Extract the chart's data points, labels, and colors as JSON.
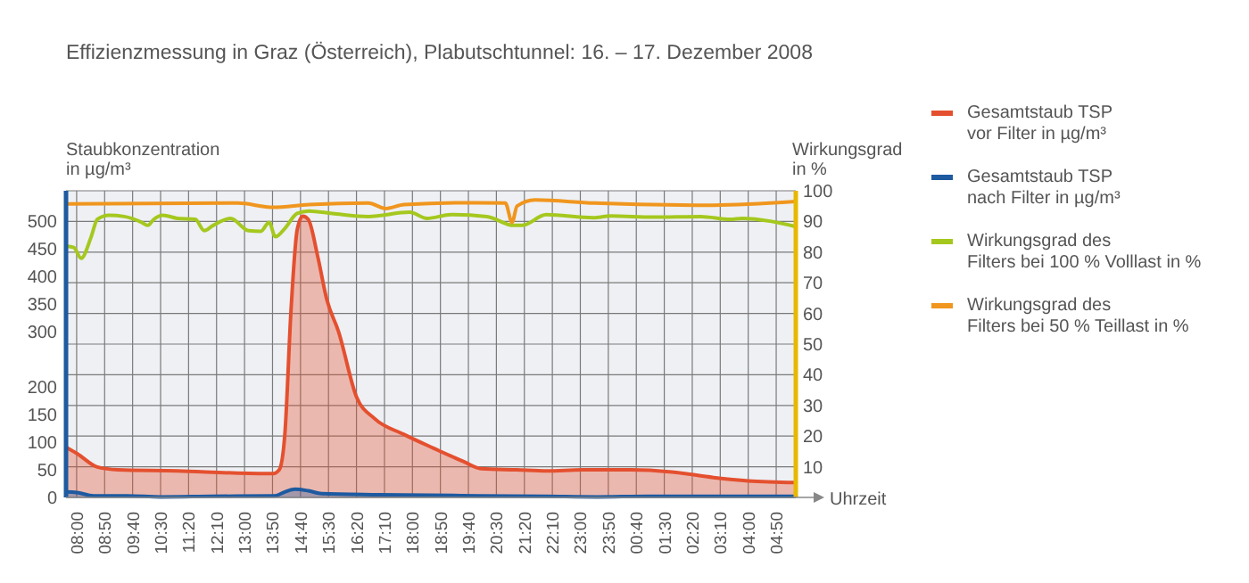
{
  "chart_data": {
    "type": "area",
    "subtitle": "Effizienzmessung in Graz (Österreich), Plabutschtunnel: 16. – 17. Dezember 2008",
    "xlabel": "Uhrzeit",
    "ylabel": "Staubkonzentration\nin µg/m³",
    "y2label": "Wirkungsgrad\nin %",
    "xlim": [
      "2008-12-16T07:41",
      "2008-12-17T05:25"
    ],
    "xticks": [
      {
        "value": "2008-12-16T08:00",
        "label": "08:00"
      },
      {
        "value": "2008-12-16T08:50",
        "label": "08:50"
      },
      {
        "value": "2008-12-16T09:40",
        "label": "09:40"
      },
      {
        "value": "2008-12-16T10:30",
        "label": "10:30"
      },
      {
        "value": "2008-12-16T11:20",
        "label": "11:20"
      },
      {
        "value": "2008-12-16T12:10",
        "label": "12:10"
      },
      {
        "value": "2008-12-16T13:00",
        "label": "13:00"
      },
      {
        "value": "2008-12-16T13:50",
        "label": "13:50"
      },
      {
        "value": "2008-12-16T14:40",
        "label": "14:40"
      },
      {
        "value": "2008-12-16T15:30",
        "label": "15:30"
      },
      {
        "value": "2008-12-16T16:20",
        "label": "16:20"
      },
      {
        "value": "2008-12-16T17:10",
        "label": "17:10"
      },
      {
        "value": "2008-12-16T18:00",
        "label": "18:00"
      },
      {
        "value": "2008-12-16T18:50",
        "label": "18:50"
      },
      {
        "value": "2008-12-16T19:40",
        "label": "19:40"
      },
      {
        "value": "2008-12-16T20:30",
        "label": "20:30"
      },
      {
        "value": "2008-12-16T21:20",
        "label": "21:20"
      },
      {
        "value": "2008-12-16T22:10",
        "label": "22:10"
      },
      {
        "value": "2008-12-16T23:00",
        "label": "23:00"
      },
      {
        "value": "2008-12-16T23:50",
        "label": "23:50"
      },
      {
        "value": "2008-12-17T00:40",
        "label": "00:40"
      },
      {
        "value": "2008-12-17T01:30",
        "label": "01:30"
      },
      {
        "value": "2008-12-17T02:20",
        "label": "02:20"
      },
      {
        "value": "2008-12-17T03:10",
        "label": "03:10"
      },
      {
        "value": "2008-12-17T04:00",
        "label": "04:00"
      },
      {
        "value": "2008-12-17T04:50",
        "label": "04:50"
      }
    ],
    "ylim": [
      0,
      555
    ],
    "yticks": [
      0,
      50,
      100,
      150,
      200,
      300,
      350,
      400,
      450,
      500
    ],
    "y2lim": [
      0,
      100
    ],
    "y2ticks": [
      {
        "value": 0,
        "label": null
      },
      10,
      20,
      30,
      40,
      50,
      60,
      70,
      80,
      90,
      100
    ],
    "grid": true,
    "legend": "right",
    "line_style": "solid",
    "series": [
      {
        "name": "Gesamtstaub TSP\nvor Filter in µg/m³",
        "color": "#e4502f",
        "x": [
          "2008-12-16T07:41",
          "2008-12-16T08:00",
          "2008-12-16T08:37",
          "2008-12-16T09:14",
          "2008-12-16T11:00",
          "2008-12-16T12:48",
          "2008-12-16T13:51",
          "2008-12-16T14:02",
          "2008-12-16T14:12",
          "2008-12-16T14:23",
          "2008-12-16T14:34",
          "2008-12-16T14:44",
          "2008-12-16T14:54",
          "2008-12-16T15:11",
          "2008-12-16T15:27",
          "2008-12-16T15:48",
          "2008-12-16T16:20",
          "2008-12-16T16:52",
          "2008-12-16T17:45",
          "2008-12-16T18:38",
          "2008-12-16T19:31",
          "2008-12-16T20:03",
          "2008-12-16T21:06",
          "2008-12-16T22:00",
          "2008-12-16T23:04",
          "2008-12-17T00:30",
          "2008-12-17T01:44",
          "2008-12-17T02:58",
          "2008-12-17T04:00",
          "2008-12-17T05:25"
        ],
        "values": [
          91,
          80,
          55,
          50,
          48,
          44,
          43,
          50,
          114,
          338,
          484,
          509,
          503,
          435,
          358,
          300,
          182,
          143,
          114,
          89,
          65,
          52,
          50,
          48,
          50,
          50,
          46,
          36,
          30,
          27
        ]
      },
      {
        "name": "Gesamtstaub TSP\nnach Filter in µg/m³",
        "color": "#1d5aa0",
        "x": [
          "2008-12-16T07:41",
          "2008-12-16T08:00",
          "2008-12-16T08:30",
          "2008-12-16T09:30",
          "2008-12-16T10:30",
          "2008-12-16T12:00",
          "2008-12-16T13:54",
          "2008-12-16T14:12",
          "2008-12-16T14:30",
          "2008-12-16T14:54",
          "2008-12-16T15:18",
          "2008-12-16T17:00",
          "2008-12-16T20:00",
          "2008-12-16T22:00",
          "2008-12-16T23:30",
          "2008-12-17T01:00",
          "2008-12-17T05:25"
        ],
        "values": [
          10,
          9,
          3,
          3,
          1,
          2,
          3,
          10,
          15,
          12,
          7,
          5,
          3,
          2,
          1,
          2,
          2
        ]
      },
      {
        "name": "Wirkungsgrad des\nFilters bei 100 % Volllast in %",
        "type": "line",
        "axis": "y2",
        "color": "#a5c81e",
        "x": [
          "2008-12-16T07:41",
          "2008-12-16T07:55",
          "2008-12-16T08:08",
          "2008-12-16T08:26",
          "2008-12-16T08:37",
          "2008-12-16T08:58",
          "2008-12-16T09:25",
          "2008-12-16T09:56",
          "2008-12-16T10:07",
          "2008-12-16T10:18",
          "2008-12-16T10:34",
          "2008-12-16T11:00",
          "2008-12-16T11:32",
          "2008-12-16T11:48",
          "2008-12-16T12:04",
          "2008-12-16T12:35",
          "2008-12-16T13:07",
          "2008-12-16T13:29",
          "2008-12-16T13:44",
          "2008-12-16T13:55",
          "2008-12-16T14:12",
          "2008-12-16T14:34",
          "2008-12-16T14:55",
          "2008-12-16T15:37",
          "2008-12-16T16:41",
          "2008-12-16T17:55",
          "2008-12-16T18:26",
          "2008-12-16T19:09",
          "2008-12-16T20:13",
          "2008-12-16T21:01",
          "2008-12-16T21:16",
          "2008-12-16T21:59",
          "2008-12-16T23:23",
          "2008-12-16T23:55",
          "2008-12-17T01:10",
          "2008-12-17T02:35",
          "2008-12-17T03:28",
          "2008-12-17T03:49",
          "2008-12-17T04:42",
          "2008-12-17T05:25"
        ],
        "values": [
          82,
          81.5,
          78,
          85,
          90.7,
          92,
          91.6,
          89.7,
          88.7,
          90.7,
          92,
          91,
          90.7,
          87,
          88.7,
          91,
          87,
          86.8,
          89.7,
          85,
          87.7,
          92.6,
          93.4,
          92.6,
          91.6,
          93,
          91,
          92.2,
          91.6,
          88.7,
          88.7,
          92.2,
          91.2,
          91.8,
          91.4,
          91.6,
          90.7,
          91,
          90,
          88.3
        ]
      },
      {
        "name": "Wirkungsgrad des\nFilters bei 50 % Teillast in %",
        "type": "line",
        "axis": "y2",
        "color": "#f0961e",
        "x": [
          "2008-12-16T07:41",
          "2008-12-16T12:48",
          "2008-12-16T13:51",
          "2008-12-16T14:55",
          "2008-12-16T16:41",
          "2008-12-16T17:13",
          "2008-12-16T17:45",
          "2008-12-16T19:52",
          "2008-12-16T20:46",
          "2008-12-16T20:58",
          "2008-12-16T21:07",
          "2008-12-16T21:39",
          "2008-12-16T23:25",
          "2008-12-17T02:58",
          "2008-12-17T05:25"
        ],
        "values": [
          95.7,
          96,
          94.6,
          95.5,
          96,
          94.2,
          95.5,
          96.1,
          96,
          89.7,
          95,
          97,
          96,
          95.3,
          96.5
        ]
      }
    ]
  }
}
